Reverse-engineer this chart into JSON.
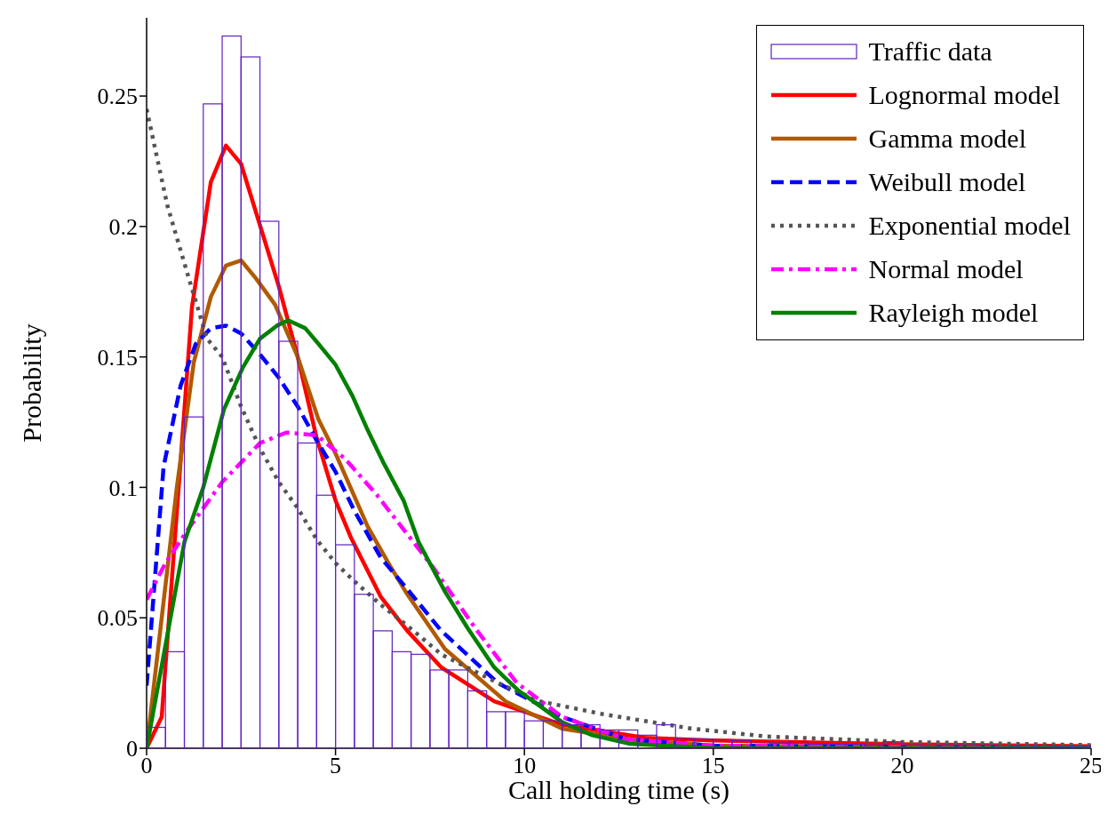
{
  "chart_data": {
    "type": "histogram",
    "xlabel": "Call holding time (s)",
    "ylabel": "Probability",
    "xlim": [
      0,
      25
    ],
    "xticks": [
      0,
      5,
      10,
      15,
      20,
      25
    ],
    "ylim": [
      0,
      0.28
    ],
    "yticks": [
      0,
      0.05,
      0.1,
      0.15,
      0.2,
      0.25
    ],
    "grid": false,
    "legend": "top right",
    "bins": [
      0,
      0.5,
      1,
      1.5,
      2,
      2.5,
      3,
      3.5,
      4,
      4.5,
      5,
      5.5,
      6,
      6.5,
      7,
      7.5,
      8,
      8.5,
      9,
      9.5,
      10,
      10.5,
      11,
      11.5,
      12,
      12.5,
      13,
      13.5,
      14,
      14.5,
      15,
      15.5,
      16,
      16.5,
      17,
      17.5,
      18,
      18.5,
      19,
      19.5,
      20,
      20.5,
      21,
      21.5,
      22,
      22.5,
      23,
      23.5,
      24,
      24.5,
      25
    ],
    "series": [
      {
        "name": "Traffic data",
        "type": "histogram",
        "color": "#6020c0",
        "values": [
          0.008,
          0.037,
          0.127,
          0.247,
          0.273,
          0.265,
          0.202,
          0.156,
          0.117,
          0.097,
          0.078,
          0.059,
          0.045,
          0.037,
          0.036,
          0.03,
          0.03,
          0.022,
          0.014,
          0.014,
          0.0105,
          0.0105,
          0.009,
          0.009,
          0.007,
          0.007,
          0.005,
          0.009,
          0.0035,
          0.0035,
          0.0033,
          0.003,
          0.0025,
          0.002,
          0.0025,
          0.0015,
          0.0015,
          0.0015,
          0.0012,
          0.0025,
          0.0012,
          0.001,
          0.0012,
          0.0012,
          0.0012,
          0.001,
          0.001,
          0.001,
          0.0008,
          0.0008
        ]
      },
      {
        "name": "Lognormal model",
        "type": "line",
        "color": "#ff0000",
        "line_style": "solid",
        "x": [
          0,
          0.4,
          1.2,
          1.7,
          2.1,
          2.5,
          3.5,
          4,
          4.5,
          5,
          5.4,
          6.2,
          6.9,
          7.8,
          9.2,
          11,
          13.2,
          15,
          20,
          25
        ],
        "values": [
          0,
          0.012,
          0.169,
          0.217,
          0.231,
          0.224,
          0.177,
          0.15,
          0.119,
          0.095,
          0.081,
          0.058,
          0.045,
          0.031,
          0.018,
          0.009,
          0.004,
          0.003,
          0.0015,
          0.0008
        ]
      },
      {
        "name": "Gamma model",
        "type": "line",
        "color": "#b25a00",
        "line_style": "solid",
        "x": [
          0,
          0.8,
          1.25,
          1.7,
          2.1,
          2.5,
          2.9,
          3.4,
          4,
          4.55,
          5,
          5.85,
          6.4,
          6.9,
          7.9,
          9.5,
          11,
          13,
          15,
          25
        ],
        "values": [
          0,
          0.1,
          0.148,
          0.173,
          0.185,
          0.187,
          0.18,
          0.17,
          0.15,
          0.126,
          0.113,
          0.085,
          0.071,
          0.059,
          0.038,
          0.018,
          0.0075,
          0.003,
          0.001,
          0
        ]
      },
      {
        "name": "Weibull model",
        "type": "line",
        "color": "#0000ff",
        "line_style": "dashed",
        "x": [
          0,
          0.45,
          0.9,
          1.3,
          1.7,
          2.1,
          2.5,
          3,
          3.5,
          4,
          4.5,
          5,
          5.5,
          6.2,
          6.9,
          7.8,
          9.3,
          11,
          12.7,
          15,
          25
        ],
        "values": [
          0.024,
          0.108,
          0.139,
          0.155,
          0.161,
          0.162,
          0.159,
          0.151,
          0.142,
          0.131,
          0.118,
          0.106,
          0.091,
          0.073,
          0.061,
          0.045,
          0.025,
          0.012,
          0.0034,
          0.001,
          0
        ]
      },
      {
        "name": "Exponential model",
        "type": "line",
        "color": "#555555",
        "line_style": "dotted",
        "x": [
          0,
          0.55,
          1.1,
          1.6,
          2,
          2.5,
          3,
          3.5,
          4,
          4.5,
          5,
          5.5,
          6.2,
          6.9,
          7.8,
          9.3,
          10.4,
          12.1,
          14.4,
          16.4,
          18.2,
          20,
          22.9,
          25
        ],
        "values": [
          0.245,
          0.208,
          0.181,
          0.157,
          0.15,
          0.131,
          0.115,
          0.102,
          0.092,
          0.08,
          0.071,
          0.064,
          0.055,
          0.047,
          0.036,
          0.025,
          0.018,
          0.013,
          0.0076,
          0.0045,
          0.0035,
          0.0024,
          0.0017,
          0.0012
        ]
      },
      {
        "name": "Normal model",
        "type": "line",
        "color": "#ff00ff",
        "line_style": "dashdot",
        "x": [
          0,
          0.5,
          1.1,
          2,
          3,
          3.7,
          4.5,
          5.25,
          6.1,
          6.9,
          7.6,
          8.7,
          9.8,
          11,
          12.7,
          15,
          25
        ],
        "values": [
          0.057,
          0.071,
          0.084,
          0.102,
          0.117,
          0.121,
          0.12,
          0.111,
          0.097,
          0.082,
          0.069,
          0.046,
          0.025,
          0.012,
          0.0034,
          0.001,
          0
        ]
      },
      {
        "name": "Rayleigh model",
        "type": "line",
        "color": "#008000",
        "line_style": "solid",
        "x": [
          0,
          1,
          1.5,
          2.05,
          2.55,
          3,
          3.45,
          3.75,
          4.2,
          4.55,
          5,
          5.45,
          5.85,
          6.25,
          6.8,
          7.2,
          7.9,
          8.5,
          9.2,
          9.85,
          11,
          11.8,
          12.8,
          15,
          25
        ],
        "values": [
          0,
          0.079,
          0.1,
          0.13,
          0.146,
          0.157,
          0.162,
          0.164,
          0.161,
          0.155,
          0.147,
          0.135,
          0.122,
          0.11,
          0.095,
          0.079,
          0.06,
          0.046,
          0.031,
          0.022,
          0.01,
          0.005,
          0.0017,
          0,
          0
        ]
      }
    ]
  }
}
